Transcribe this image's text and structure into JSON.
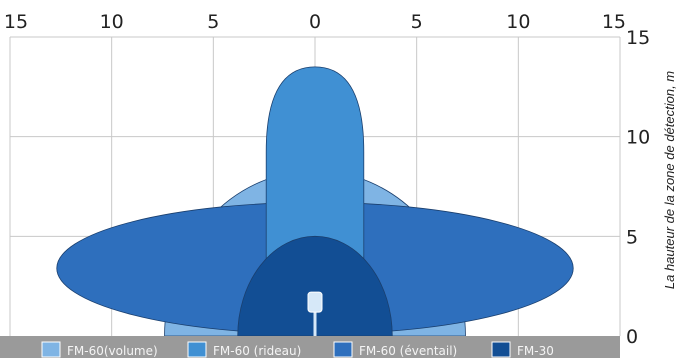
{
  "chart_data": {
    "type": "diagram",
    "x_ticks": [
      "15",
      "10",
      "5",
      "0",
      "5",
      "10",
      "15"
    ],
    "y_ticks": [
      "0",
      "5",
      "10",
      "15"
    ],
    "ylabel": "La hauteur de la zone de détection, m",
    "xlim": [
      -15,
      15
    ],
    "ylim": [
      0,
      15
    ],
    "zones": [
      {
        "name": "FM-60(volume)",
        "color": "#7fb4e4",
        "shape": "dome",
        "x_range": [
          -7.4,
          7.4
        ],
        "height": 8.3
      },
      {
        "name": "FM-60 (éventail)",
        "color": "#2e6fbd",
        "shape": "ellipse",
        "x_range": [
          -12.7,
          12.7
        ],
        "y_center": 3.4,
        "half_height": 3.3
      },
      {
        "name": "FM-60 (rideau)",
        "color": "#4090d3",
        "shape": "capsule",
        "x_range": [
          -2.4,
          2.4
        ],
        "height": 13.5
      },
      {
        "name": "FM-30",
        "color": "#124e94",
        "shape": "dome",
        "x_range": [
          -3.8,
          3.8
        ],
        "height": 5.0
      }
    ],
    "legend": [
      {
        "label": "FM-60(volume)",
        "color": "#7fb4e4"
      },
      {
        "label": "FM-60 (rideau)",
        "color": "#4090d3"
      },
      {
        "label": "FM-60 (éventail)",
        "color": "#2e6fbd"
      },
      {
        "label": "FM-30",
        "color": "#124e94"
      }
    ],
    "colors": {
      "grid": "#c8c8c8",
      "floor": "#9a9a9a",
      "detector": "#d6e8f8"
    }
  }
}
